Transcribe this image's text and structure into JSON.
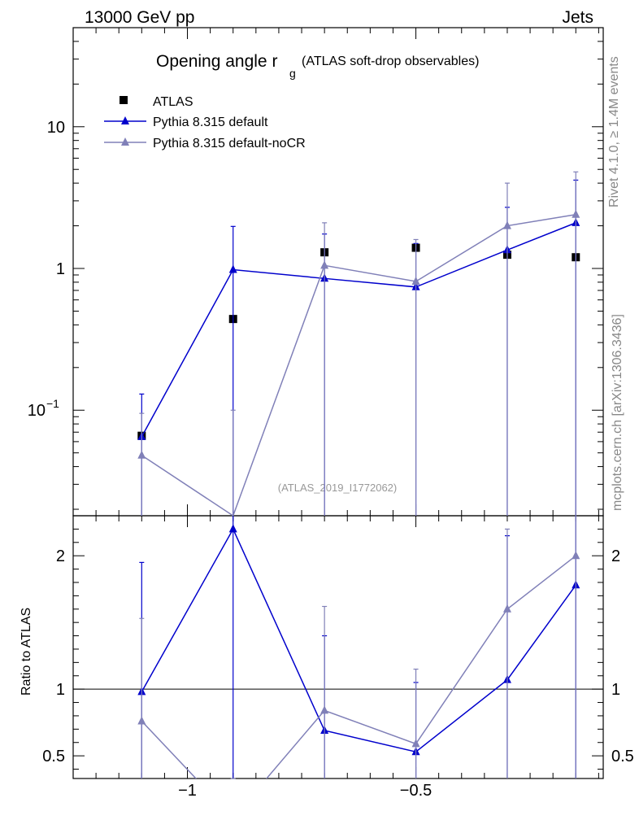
{
  "header": {
    "energy_label": "13000 GeV pp",
    "process_label": "Jets"
  },
  "side_labels": {
    "rivet": "Rivet 4.1.0, ≥ 1.4M events",
    "mcplots": "mcplots.cern.ch [arXiv:1306.3436]"
  },
  "chart_data": [
    {
      "type": "line",
      "panel": "main",
      "title_main": "Opening angle r",
      "title_sub": "g",
      "title_suffix": "(ATLAS soft-drop observables)",
      "analysis_id": "(ATLAS_2019_I1772062)",
      "xlabel": "",
      "ylabel": "",
      "yscale": "log",
      "xlim": [
        -1.25,
        -0.09
      ],
      "ylim": [
        0.018,
        50
      ],
      "x_ticks": [
        -1,
        -0.5
      ],
      "y_ticks": [
        {
          "value": 10,
          "label": "10",
          "exp": ""
        },
        {
          "value": 1,
          "label": "1",
          "exp": ""
        },
        {
          "value": 0.1,
          "label": "10",
          "exp": "−1"
        }
      ],
      "legend": [
        "ATLAS",
        "Pythia 8.315 default",
        "Pythia 8.315 default-noCR"
      ],
      "series": [
        {
          "name": "ATLAS",
          "color": "#000000",
          "marker": "square",
          "x": [
            -1.1,
            -0.9,
            -0.7,
            -0.5,
            -0.3,
            -0.15
          ],
          "values": [
            0.066,
            0.44,
            1.3,
            1.4,
            1.25,
            1.2
          ]
        },
        {
          "name": "Pythia 8.315 default",
          "color": "#0000cc",
          "marker": "triangle",
          "x": [
            -1.1,
            -0.9,
            -0.7,
            -0.5,
            -0.3,
            -0.15
          ],
          "values": [
            0.065,
            0.98,
            0.85,
            0.74,
            1.35,
            2.1
          ],
          "err_up": [
            0.13,
            1.98,
            1.75,
            1.5,
            2.7,
            4.2
          ],
          "err_down": [
            0.0,
            0.0,
            0.0,
            0.0,
            0.0,
            0.0
          ]
        },
        {
          "name": "Pythia 8.315 default-noCR",
          "color": "#8080b8",
          "marker": "triangle",
          "x": [
            -1.1,
            -0.9,
            -0.7,
            -0.5,
            -0.3,
            -0.15
          ],
          "values": [
            0.048,
            0.015,
            1.05,
            0.81,
            2.0,
            2.4
          ],
          "err_up": [
            0.095,
            0.1,
            2.1,
            1.6,
            4.0,
            4.8
          ],
          "err_down": [
            0.0,
            0.0,
            0.0,
            0.0,
            0.0,
            0.0
          ]
        }
      ]
    },
    {
      "type": "line",
      "panel": "ratio",
      "xlabel": "",
      "ylabel": "Ratio to ATLAS",
      "xlim": [
        -1.25,
        -0.09
      ],
      "ylim": [
        0.33,
        2.3
      ],
      "reference_line": 1,
      "x_ticks": [
        -1,
        -0.5
      ],
      "x_tick_labels": [
        "−1",
        "−0.5"
      ],
      "y_ticks": [
        0.5,
        1,
        2
      ],
      "y_tick_labels": [
        "0.5",
        "1",
        "2"
      ],
      "series": [
        {
          "name": "Pythia 8.315 default",
          "color": "#0000cc",
          "x": [
            -1.1,
            -0.9,
            -0.7,
            -0.5,
            -0.3,
            -0.15
          ],
          "values": [
            0.98,
            2.2,
            0.69,
            0.53,
            1.07,
            1.78
          ],
          "err_up": [
            1.95,
            5.0,
            1.4,
            1.05,
            2.15,
            3.5
          ],
          "err_down": [
            0.0,
            0.0,
            0.0,
            0.0,
            0.0,
            0.0
          ]
        },
        {
          "name": "Pythia 8.315 default-noCR",
          "color": "#8080b8",
          "x": [
            -1.1,
            -0.9,
            -0.7,
            -0.5,
            -0.3,
            -0.15
          ],
          "values": [
            0.76,
            0.035,
            0.84,
            0.59,
            1.6,
            2.0
          ],
          "err_up": [
            1.53,
            0.1,
            1.62,
            1.15,
            2.2,
            3.8
          ],
          "err_down": [
            0.0,
            0.0,
            0.0,
            0.0,
            0.0,
            0.0
          ]
        }
      ]
    }
  ]
}
